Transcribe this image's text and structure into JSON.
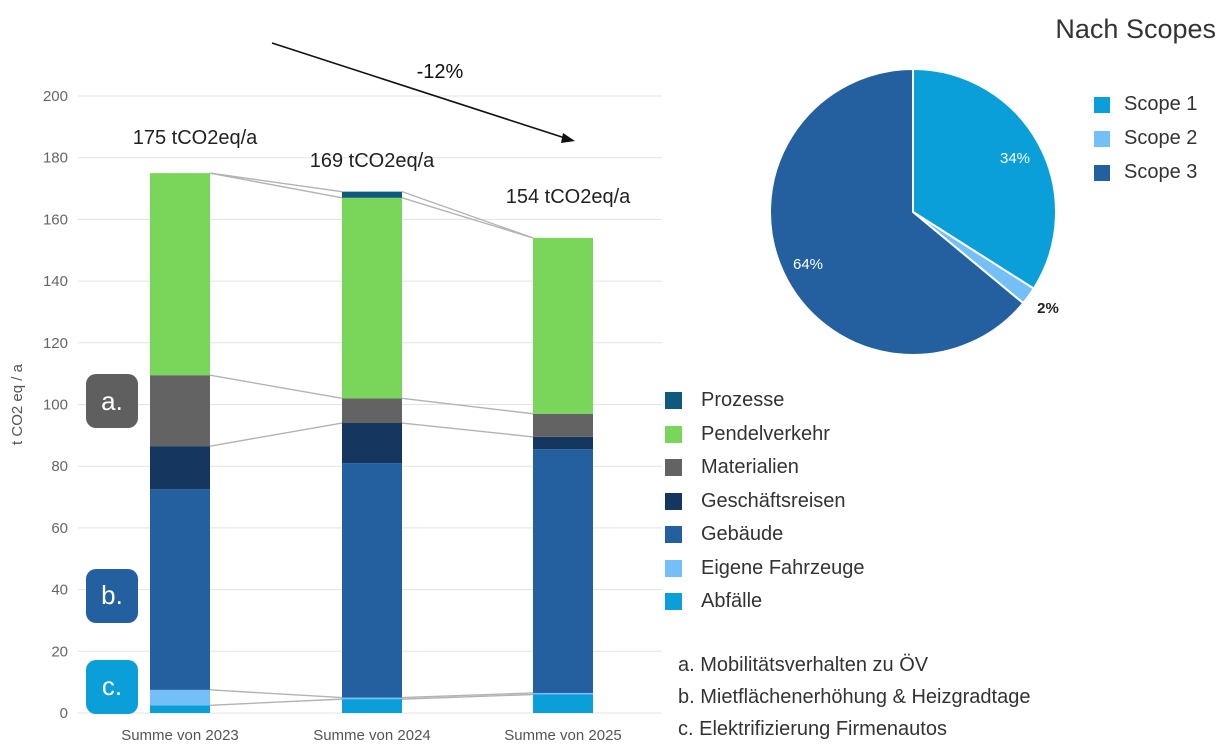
{
  "chart_data": [
    {
      "type": "bar",
      "stacked": true,
      "title": "",
      "xlabel": "",
      "ylabel": "t CO2 eq / a",
      "ylim": [
        0,
        200
      ],
      "yticks": [
        0,
        20,
        40,
        60,
        80,
        100,
        120,
        140,
        160,
        180,
        200
      ],
      "grid": true,
      "legend_position": "right",
      "categories": [
        "Summe von 2023",
        "Summe von 2024",
        "Summe von 2025"
      ],
      "series": [
        {
          "name": "Abfälle",
          "color": "#0a9fd9",
          "values": [
            2.5,
            4.5,
            6
          ]
        },
        {
          "name": "Eigene Fahrzeuge",
          "color": "#74bff5",
          "values": [
            5,
            0.5,
            0.5
          ]
        },
        {
          "name": "Gebäude",
          "color": "#245f9f",
          "values": [
            65,
            76,
            79
          ]
        },
        {
          "name": "Geschäftsreisen",
          "color": "#14365f",
          "values": [
            14,
            13,
            4
          ]
        },
        {
          "name": "Materialien",
          "color": "#636363",
          "values": [
            23,
            8,
            7.5
          ]
        },
        {
          "name": "Pendelverkehr",
          "color": "#79d65b",
          "values": [
            65.5,
            65,
            57
          ]
        },
        {
          "name": "Prozesse",
          "color": "#0e5a7c",
          "values": [
            0,
            2,
            0
          ]
        }
      ],
      "totals_labels": [
        "175 tCO2eq/a",
        "169 tCO2eq/a",
        "154 tCO2eq/a"
      ],
      "annotation": "-12%",
      "badges": [
        {
          "text": "a.",
          "color": "#5f5f5f",
          "at_value": 101
        },
        {
          "text": "b.",
          "color": "#245f9f",
          "at_value": 38
        },
        {
          "text": "c.",
          "color": "#0a9fd9",
          "at_value": 8.5
        }
      ]
    },
    {
      "type": "pie",
      "title": "Nach Scopes",
      "legend_position": "right",
      "slices": [
        {
          "name": "Scope 1",
          "value": 34,
          "label": "34%",
          "color": "#0a9fd9"
        },
        {
          "name": "Scope 2",
          "value": 2,
          "label": "2%",
          "color": "#74bff5"
        },
        {
          "name": "Scope 3",
          "value": 64,
          "label": "64%",
          "color": "#245f9f"
        }
      ]
    }
  ],
  "notes": [
    "a.  Mobilitätsverhalten zu ÖV",
    "b.  Mietflächenerhöhung & Heizgradtage",
    "c.  Elektrifizierung Firmenautos"
  ]
}
